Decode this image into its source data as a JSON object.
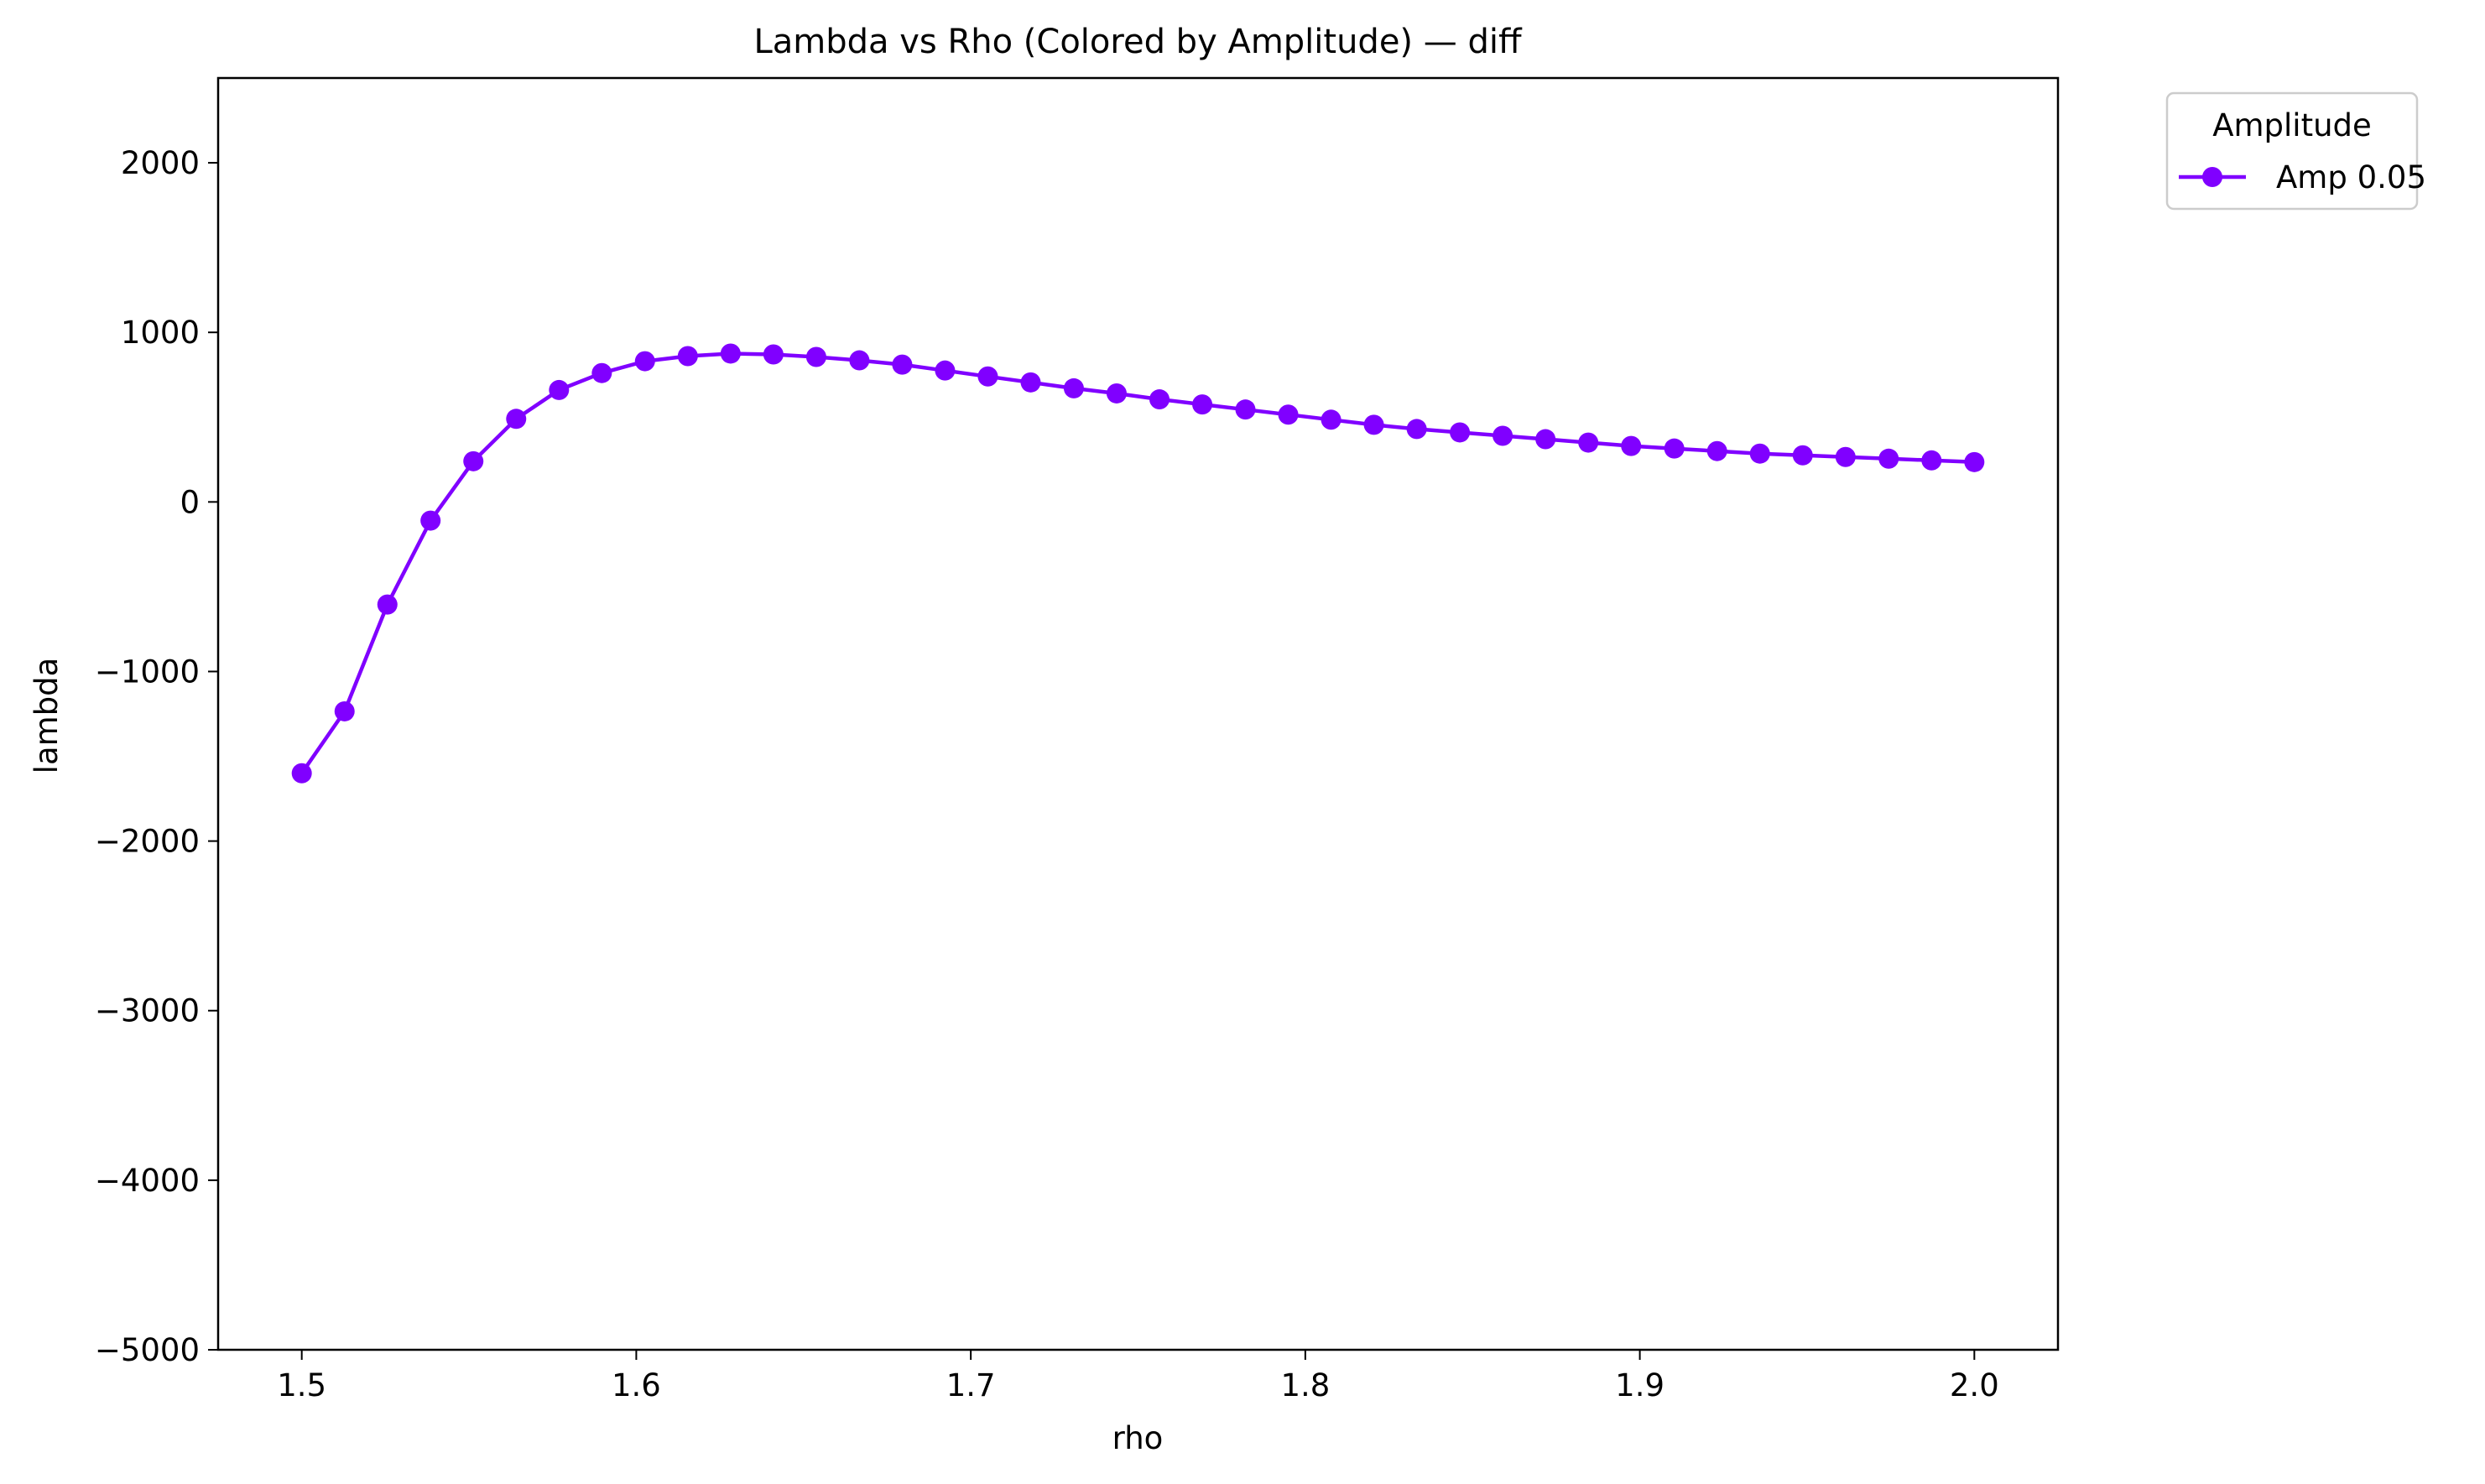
{
  "chart_data": {
    "type": "line",
    "title": "Lambda vs Rho (Colored by Amplitude) — diff",
    "xlabel": "rho",
    "ylabel": "lambda",
    "xlim": [
      1.475,
      2.025
    ],
    "ylim": [
      -5000,
      2500
    ],
    "xticks": [
      1.5,
      1.6,
      1.7,
      1.8,
      1.9,
      2.0
    ],
    "xtick_labels": [
      "1.5",
      "1.6",
      "1.7",
      "1.8",
      "1.9",
      "2.0"
    ],
    "yticks": [
      -5000,
      -4000,
      -3000,
      -2000,
      -1000,
      0,
      1000,
      2000
    ],
    "ytick_labels": [
      "−5000",
      "−4000",
      "−3000",
      "−2000",
      "−1000",
      "0",
      "1000",
      "2000"
    ],
    "grid": false,
    "legend": {
      "title": "Amplitude",
      "placement": "outside-top-right"
    },
    "series": [
      {
        "name": "Amp 0.05",
        "color": "#8000ff",
        "marker": "circle",
        "x": [
          1.5,
          1.5128,
          1.5256,
          1.5385,
          1.5513,
          1.5641,
          1.5769,
          1.5897,
          1.6026,
          1.6154,
          1.6282,
          1.641,
          1.6538,
          1.6667,
          1.6795,
          1.6923,
          1.7051,
          1.7179,
          1.7308,
          1.7436,
          1.7564,
          1.7692,
          1.7821,
          1.7949,
          1.8077,
          1.8205,
          1.8333,
          1.8462,
          1.859,
          1.8718,
          1.8846,
          1.8974,
          1.9103,
          1.9231,
          1.9359,
          1.9487,
          1.9615,
          1.9744,
          1.9872,
          2.0
        ],
        "y": [
          -1600,
          -1235,
          -605,
          -110,
          240,
          490,
          660,
          760,
          830,
          860,
          875,
          870,
          855,
          835,
          810,
          775,
          740,
          705,
          670,
          640,
          605,
          575,
          545,
          515,
          485,
          455,
          430,
          410,
          390,
          370,
          350,
          330,
          315,
          300,
          285,
          275,
          265,
          255,
          245,
          235
        ]
      }
    ]
  }
}
